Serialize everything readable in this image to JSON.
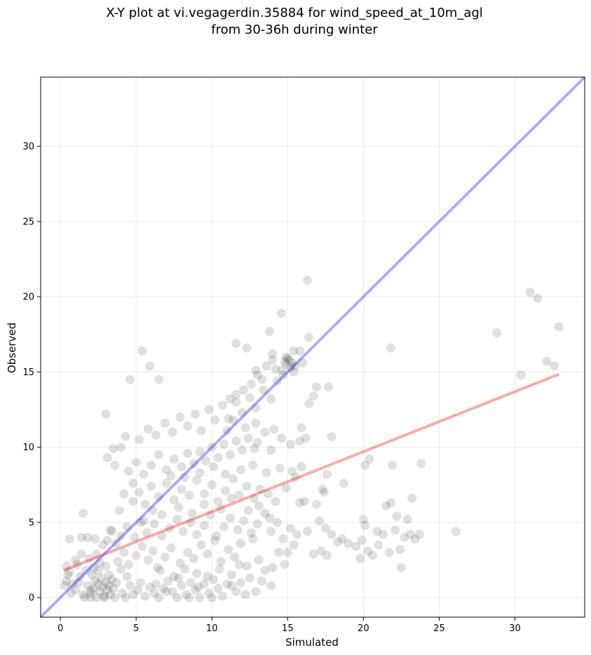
{
  "chart_data": {
    "type": "scatter",
    "title_lines": [
      "X-Y plot at vi.vegagerdin.35884 for wind_speed_at_10m_agl",
      "from 30-36h during winter"
    ],
    "xlabel": "Simulated",
    "ylabel": "Observed",
    "xlim": [
      -1.3,
      34.6
    ],
    "ylim": [
      -1.3,
      34.6
    ],
    "x_ticks": [
      0,
      5,
      10,
      15,
      20,
      25,
      30
    ],
    "y_ticks": [
      0,
      5,
      10,
      15,
      20,
      25,
      30
    ],
    "grid": true,
    "colors": {
      "points": "#000000",
      "identity_line": "#0000ee",
      "fit_line": "#ee0000",
      "grid": "#dddddd"
    },
    "identity_line": {
      "x": [
        -1.3,
        34.6
      ],
      "y": [
        -1.3,
        34.6
      ]
    },
    "fit_line": {
      "x": [
        0.2,
        32.9
      ],
      "y": [
        1.8,
        14.85
      ]
    },
    "points": [
      [
        1.0,
        0.5
      ],
      [
        1.2,
        1.0
      ],
      [
        1.5,
        0.2
      ],
      [
        1.8,
        0.8
      ],
      [
        2.0,
        0.3
      ],
      [
        2.1,
        1.5
      ],
      [
        2.2,
        0.6
      ],
      [
        2.3,
        1.1
      ],
      [
        2.4,
        0.0
      ],
      [
        2.5,
        0.9
      ],
      [
        2.6,
        0.4
      ],
      [
        2.7,
        1.3
      ],
      [
        2.8,
        0.7
      ],
      [
        2.9,
        0.1
      ],
      [
        3.0,
        1.0
      ],
      [
        3.1,
        0.5
      ],
      [
        3.2,
        0.8
      ],
      [
        3.3,
        0.2
      ],
      [
        3.4,
        1.2
      ],
      [
        3.5,
        0.6
      ],
      [
        1.7,
        1.8
      ],
      [
        2.2,
        2.0
      ],
      [
        2.6,
        2.3
      ],
      [
        3.0,
        2.1
      ],
      [
        1.3,
        1.4
      ],
      [
        0.8,
        0.9
      ],
      [
        0.6,
        1.7
      ],
      [
        1.1,
        2.2
      ],
      [
        1.9,
        2.6
      ],
      [
        2.4,
        2.9
      ],
      [
        0.4,
        1.1
      ],
      [
        0.7,
        0.3
      ],
      [
        1.6,
        0.0
      ],
      [
        2.0,
        0.0
      ],
      [
        2.9,
        0.0
      ],
      [
        3.6,
        0.0
      ],
      [
        4.1,
        0.3
      ],
      [
        4.3,
        0.0
      ],
      [
        4.6,
        0.8
      ],
      [
        4.8,
        0.2
      ],
      [
        5.1,
        0.5
      ],
      [
        5.3,
        1.0
      ],
      [
        5.6,
        0.1
      ],
      [
        5.9,
        0.7
      ],
      [
        6.2,
        0.3
      ],
      [
        6.5,
        0.0
      ],
      [
        6.8,
        0.6
      ],
      [
        7.1,
        1.1
      ],
      [
        7.4,
        0.4
      ],
      [
        7.7,
        0.0
      ],
      [
        8.0,
        0.8
      ],
      [
        8.3,
        0.2
      ],
      [
        8.6,
        1.0
      ],
      [
        8.9,
        0.5
      ],
      [
        9.2,
        0.0
      ],
      [
        9.5,
        0.9
      ],
      [
        9.8,
        0.3
      ],
      [
        10.1,
        1.2
      ],
      [
        10.4,
        0.6
      ],
      [
        10.7,
        0.1
      ],
      [
        11.0,
        0.9
      ],
      [
        11.3,
        1.5
      ],
      [
        11.6,
        0.4
      ],
      [
        11.9,
        1.0
      ],
      [
        12.2,
        0.2
      ],
      [
        10.0,
        0.0
      ],
      [
        9.0,
        1.6
      ],
      [
        8.2,
        1.9
      ],
      [
        7.5,
        1.4
      ],
      [
        6.6,
        1.8
      ],
      [
        3.8,
        2.4
      ],
      [
        4.2,
        3.0
      ],
      [
        4.5,
        2.2
      ],
      [
        5.0,
        2.8
      ],
      [
        5.4,
        3.4
      ],
      [
        5.8,
        2.5
      ],
      [
        6.1,
        3.1
      ],
      [
        6.4,
        2.0
      ],
      [
        6.9,
        2.7
      ],
      [
        7.3,
        3.3
      ],
      [
        7.9,
        2.3
      ],
      [
        8.4,
        3.0
      ],
      [
        8.8,
        2.6
      ],
      [
        9.3,
        3.5
      ],
      [
        9.7,
        2.9
      ],
      [
        10.2,
        3.8
      ],
      [
        10.6,
        2.4
      ],
      [
        11.1,
        3.2
      ],
      [
        11.5,
        2.7
      ],
      [
        11.9,
        3.6
      ],
      [
        12.3,
        2.1
      ],
      [
        12.7,
        3.9
      ],
      [
        13.1,
        2.5
      ],
      [
        13.5,
        1.8
      ],
      [
        13.9,
        0.8
      ],
      [
        13.3,
        1.1
      ],
      [
        12.9,
        0.4
      ],
      [
        14.0,
        2.0
      ],
      [
        14.4,
        3.0
      ],
      [
        14.8,
        2.2
      ],
      [
        3.1,
        3.8
      ],
      [
        3.4,
        4.4
      ],
      [
        3.7,
        3.6
      ],
      [
        4.0,
        4.1
      ],
      [
        4.4,
        4.7
      ],
      [
        4.9,
        4.0
      ],
      [
        5.3,
        5.0
      ],
      [
        5.7,
        4.3
      ],
      [
        6.2,
        4.9
      ],
      [
        6.7,
        4.1
      ],
      [
        7.2,
        4.6
      ],
      [
        7.7,
        5.2
      ],
      [
        8.1,
        4.4
      ],
      [
        8.6,
        5.0
      ],
      [
        9.0,
        4.2
      ],
      [
        9.5,
        4.8
      ],
      [
        9.9,
        5.5
      ],
      [
        10.3,
        4.1
      ],
      [
        10.8,
        4.7
      ],
      [
        11.2,
        5.3
      ],
      [
        11.7,
        4.5
      ],
      [
        12.1,
        5.1
      ],
      [
        12.6,
        4.3
      ],
      [
        13.0,
        4.9
      ],
      [
        13.5,
        5.6
      ],
      [
        13.9,
        4.4
      ],
      [
        14.3,
        5.0
      ],
      [
        14.7,
        3.9
      ],
      [
        15.2,
        4.6
      ],
      [
        15.6,
        4.2
      ],
      [
        4.8,
        6.4
      ],
      [
        5.2,
        7.0
      ],
      [
        5.6,
        6.2
      ],
      [
        6.0,
        7.4
      ],
      [
        6.5,
        6.7
      ],
      [
        7.0,
        7.6
      ],
      [
        7.5,
        6.5
      ],
      [
        8.0,
        7.2
      ],
      [
        8.5,
        6.8
      ],
      [
        9.0,
        7.8
      ],
      [
        9.5,
        6.9
      ],
      [
        10.0,
        7.5
      ],
      [
        10.4,
        6.4
      ],
      [
        10.9,
        7.1
      ],
      [
        11.4,
        7.9
      ],
      [
        11.8,
        6.8
      ],
      [
        12.3,
        7.4
      ],
      [
        12.8,
        6.6
      ],
      [
        13.2,
        7.2
      ],
      [
        13.7,
        6.9
      ],
      [
        4.5,
        8.4
      ],
      [
        5.0,
        9.0
      ],
      [
        5.5,
        8.2
      ],
      [
        6.0,
        8.8
      ],
      [
        6.5,
        9.5
      ],
      [
        7.0,
        8.5
      ],
      [
        7.5,
        9.2
      ],
      [
        8.0,
        8.7
      ],
      [
        8.4,
        9.6
      ],
      [
        8.8,
        8.9
      ],
      [
        9.2,
        9.7
      ],
      [
        9.6,
        9.1
      ],
      [
        10.0,
        10.0
      ],
      [
        10.4,
        9.3
      ],
      [
        10.8,
        10.2
      ],
      [
        11.2,
        9.5
      ],
      [
        11.6,
        10.4
      ],
      [
        12.0,
        9.8
      ],
      [
        12.4,
        10.6
      ],
      [
        12.8,
        9.9
      ],
      [
        5.2,
        10.5
      ],
      [
        5.8,
        11.2
      ],
      [
        6.3,
        10.8
      ],
      [
        6.9,
        11.6
      ],
      [
        7.4,
        11.0
      ],
      [
        7.9,
        12.0
      ],
      [
        8.4,
        11.4
      ],
      [
        8.9,
        12.2
      ],
      [
        9.3,
        11.1
      ],
      [
        9.8,
        12.5
      ],
      [
        10.2,
        11.8
      ],
      [
        10.7,
        12.8
      ],
      [
        11.1,
        11.9
      ],
      [
        11.6,
        13.0
      ],
      [
        12.0,
        12.3
      ],
      [
        12.5,
        13.3
      ],
      [
        12.9,
        12.6
      ],
      [
        13.4,
        13.8
      ],
      [
        13.9,
        13.2
      ],
      [
        14.3,
        14.4
      ],
      [
        14.6,
        15.1
      ],
      [
        14.9,
        15.5
      ],
      [
        15.1,
        15.8
      ],
      [
        15.2,
        15.3
      ],
      [
        15.0,
        15.9
      ],
      [
        14.8,
        15.7
      ],
      [
        15.3,
        15.6
      ],
      [
        15.4,
        15.0
      ],
      [
        14.7,
        14.8
      ],
      [
        15.5,
        15.4
      ],
      [
        13.0,
        14.8
      ],
      [
        13.6,
        15.4
      ],
      [
        14.0,
        15.8
      ],
      [
        12.6,
        14.2
      ],
      [
        12.1,
        13.8
      ],
      [
        11.6,
        13.5
      ],
      [
        11.2,
        13.2
      ],
      [
        12.9,
        15.1
      ],
      [
        13.3,
        14.5
      ],
      [
        14.2,
        15.2
      ],
      [
        15.8,
        16.4
      ],
      [
        16.4,
        17.3
      ],
      [
        11.6,
        16.9
      ],
      [
        12.3,
        16.6
      ],
      [
        13.8,
        17.7
      ],
      [
        14.6,
        18.9
      ],
      [
        16.3,
        21.1
      ],
      [
        5.4,
        16.4
      ],
      [
        5.9,
        15.4
      ],
      [
        4.6,
        14.5
      ],
      [
        6.5,
        14.5
      ],
      [
        3.0,
        12.2
      ],
      [
        4.0,
        10.0
      ],
      [
        3.5,
        9.9
      ],
      [
        3.1,
        9.3
      ],
      [
        4.3,
        10.7
      ],
      [
        14.0,
        16.2
      ],
      [
        14.9,
        16.0
      ],
      [
        15.4,
        16.4
      ],
      [
        16.0,
        15.6
      ],
      [
        15.9,
        11.3
      ],
      [
        16.2,
        10.6
      ],
      [
        15.8,
        10.4
      ],
      [
        16.4,
        12.9
      ],
      [
        16.7,
        13.4
      ],
      [
        16.9,
        14.0
      ],
      [
        17.7,
        14.0
      ],
      [
        17.9,
        10.7
      ],
      [
        15.5,
        8.0
      ],
      [
        15.9,
        8.7
      ],
      [
        16.1,
        6.4
      ],
      [
        15.8,
        6.3
      ],
      [
        16.9,
        6.2
      ],
      [
        17.3,
        7.2
      ],
      [
        17.4,
        7.0
      ],
      [
        17.6,
        8.2
      ],
      [
        18.7,
        7.6
      ],
      [
        17.9,
        4.2
      ],
      [
        17.5,
        4.6
      ],
      [
        17.1,
        5.1
      ],
      [
        16.3,
        4.4
      ],
      [
        15.4,
        3.5
      ],
      [
        15.0,
        3.0
      ],
      [
        16.7,
        2.9
      ],
      [
        17.2,
        3.1
      ],
      [
        17.6,
        2.8
      ],
      [
        18.3,
        3.7
      ],
      [
        18.6,
        3.9
      ],
      [
        19.0,
        3.6
      ],
      [
        19.5,
        3.4
      ],
      [
        19.9,
        3.8
      ],
      [
        19.8,
        2.6
      ],
      [
        20.3,
        3.1
      ],
      [
        20.6,
        2.8
      ],
      [
        21.0,
        3.5
      ],
      [
        21.3,
        4.2
      ],
      [
        21.7,
        3.0
      ],
      [
        22.1,
        4.5
      ],
      [
        22.4,
        3.2
      ],
      [
        22.7,
        4.0
      ],
      [
        23.1,
        4.2
      ],
      [
        23.4,
        3.9
      ],
      [
        23.7,
        4.2
      ],
      [
        22.5,
        2.0
      ],
      [
        20.0,
        5.2
      ],
      [
        20.1,
        4.8
      ],
      [
        20.9,
        4.4
      ],
      [
        21.5,
        6.1
      ],
      [
        21.8,
        6.3
      ],
      [
        22.2,
        5.4
      ],
      [
        22.9,
        5.2
      ],
      [
        23.2,
        6.6
      ],
      [
        20.1,
        8.8
      ],
      [
        20.4,
        9.2
      ],
      [
        21.9,
        8.8
      ],
      [
        23.8,
        8.9
      ],
      [
        21.8,
        16.6
      ],
      [
        26.1,
        4.4
      ],
      [
        28.8,
        17.6
      ],
      [
        30.4,
        14.8
      ],
      [
        31.0,
        20.3
      ],
      [
        31.5,
        19.9
      ],
      [
        32.1,
        15.7
      ],
      [
        32.6,
        15.4
      ],
      [
        32.9,
        18.0
      ],
      [
        0.4,
        2.1
      ],
      [
        0.6,
        3.9
      ],
      [
        1.4,
        4.0
      ],
      [
        1.8,
        4.0
      ],
      [
        1.5,
        5.6
      ],
      [
        2.3,
        3.9
      ],
      [
        2.8,
        3.5
      ],
      [
        3.3,
        4.5
      ],
      [
        3.9,
        5.8
      ],
      [
        4.2,
        6.9
      ],
      [
        3.6,
        8.8
      ],
      [
        4.8,
        7.6
      ],
      [
        5.5,
        5.1
      ],
      [
        6.1,
        5.8
      ],
      [
        6.7,
        5.5
      ],
      [
        7.8,
        6.0
      ],
      [
        8.7,
        5.6
      ],
      [
        9.5,
        6.2
      ],
      [
        10.6,
        5.9
      ],
      [
        11.3,
        6.6
      ],
      [
        12.4,
        5.8
      ],
      [
        13.1,
        6.1
      ],
      [
        13.8,
        5.3
      ],
      [
        14.2,
        6.4
      ],
      [
        14.9,
        7.3
      ],
      [
        15.3,
        8.4
      ],
      [
        14.5,
        8.6
      ],
      [
        13.6,
        8.3
      ],
      [
        12.7,
        8.8
      ],
      [
        11.9,
        8.5
      ],
      [
        10.9,
        8.2
      ],
      [
        10.1,
        8.7
      ],
      [
        9.2,
        8.3
      ],
      [
        8.2,
        8.0
      ],
      [
        7.3,
        8.1
      ],
      [
        13.0,
        10.3
      ],
      [
        13.5,
        11.0
      ],
      [
        14.1,
        11.2
      ],
      [
        14.6,
        10.6
      ],
      [
        15.2,
        10.2
      ],
      [
        13.9,
        9.8
      ],
      [
        12.9,
        11.6
      ],
      [
        12.2,
        11.3
      ],
      [
        11.4,
        11.8
      ],
      [
        11.0,
        11.1
      ],
      [
        2.0,
        0.5
      ],
      [
        2.5,
        1.8
      ],
      [
        3.2,
        1.5
      ],
      [
        3.7,
        1.0
      ],
      [
        4.0,
        1.9
      ],
      [
        4.4,
        1.4
      ],
      [
        1.4,
        2.9
      ],
      [
        1.0,
        2.5
      ],
      [
        0.5,
        1.5
      ],
      [
        0.3,
        0.8
      ],
      [
        6.3,
        0.9
      ],
      [
        7.0,
        0.4
      ],
      [
        7.8,
        1.3
      ],
      [
        8.5,
        0.0
      ],
      [
        9.1,
        0.7
      ],
      [
        9.7,
        1.4
      ],
      [
        10.5,
        1.9
      ],
      [
        11.3,
        0.8
      ],
      [
        11.8,
        2.2
      ],
      [
        12.5,
        1.3
      ]
    ]
  }
}
